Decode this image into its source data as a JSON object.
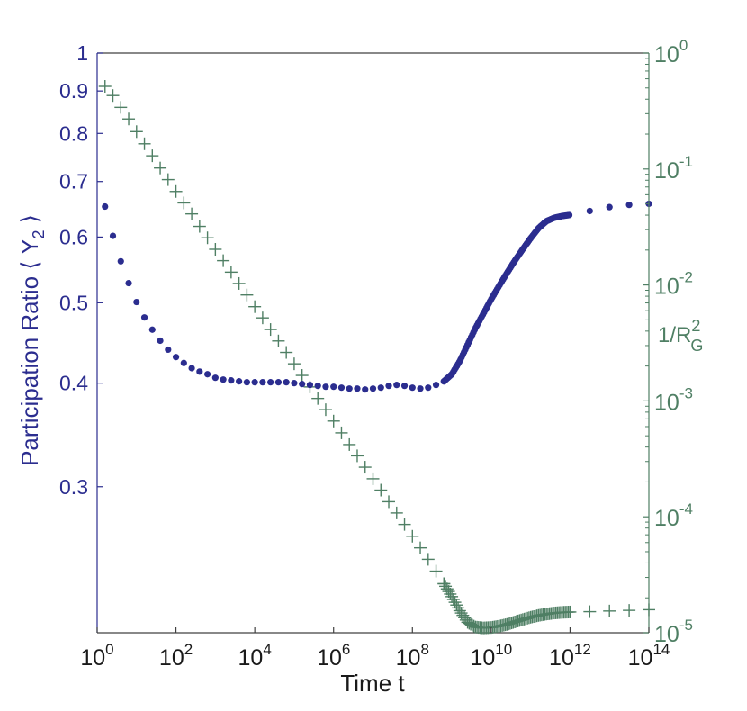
{
  "chart_data": {
    "type": "scatter",
    "title": "",
    "xlabel": "Time t",
    "ylabel_left": "Participation Ratio ⟨ Y₂ ⟩",
    "ylabel_left_main": "Participation Ratio ⟨ Y",
    "ylabel_left_sub": "2",
    "ylabel_left_close": " ⟩",
    "ylabel_right": "1/R_G^2",
    "ylabel_right_main": "1/R",
    "ylabel_right_sup": "2",
    "ylabel_right_sub": "G",
    "xscale": "log",
    "xlim": [
      1,
      100000000000000.0
    ],
    "x_ticks": [
      0,
      2,
      4,
      6,
      8,
      10,
      12,
      14
    ],
    "x_tick_labels": [
      "10^0",
      "10^2",
      "10^4",
      "10^6",
      "10^8",
      "10^10",
      "10^12",
      "10^14"
    ],
    "ylim_left": [
      0.2,
      1
    ],
    "yscale_left": "log",
    "y_ticks_left": [
      0.3,
      0.4,
      0.5,
      0.6,
      0.7,
      0.8,
      0.9,
      1
    ],
    "y_tick_labels_left": [
      "0.3",
      "0.4",
      "0.5",
      "0.6",
      "0.7",
      "0.8",
      "0.9",
      "1"
    ],
    "ylim_right": [
      1e-05,
      1
    ],
    "yscale_right": "log",
    "y_ticks_right": [
      -5,
      -4,
      -3,
      -2,
      -1,
      0
    ],
    "y_tick_labels_right": [
      "10^-5",
      "10^-4",
      "10^-3",
      "10^-2",
      "10^-1",
      "10^0"
    ],
    "grid": false,
    "legend": null,
    "colors": {
      "left_series": "#2b2d8f",
      "right_series": "#4f7f64",
      "axis": "#404040"
    },
    "series": [
      {
        "name": "Participation Ratio <Y2>",
        "axis": "left",
        "marker": "dot",
        "color": "#2b2d8f",
        "log10_t": [
          0.2,
          0.4,
          0.6,
          0.8,
          1.0,
          1.2,
          1.4,
          1.6,
          1.8,
          2.0,
          2.2,
          2.4,
          2.6,
          2.8,
          3.0,
          3.2,
          3.4,
          3.6,
          3.8,
          4.0,
          4.2,
          4.4,
          4.6,
          4.8,
          5.0,
          5.2,
          5.4,
          5.6,
          5.8,
          6.0,
          6.2,
          6.4,
          6.6,
          6.8,
          7.0,
          7.2,
          7.4,
          7.6,
          7.8,
          8.0,
          8.2,
          8.4,
          8.6,
          8.8,
          9.0,
          9.2,
          9.4,
          9.6,
          9.8,
          10.0,
          10.2,
          10.4,
          10.6,
          10.8,
          11.0,
          11.2,
          11.4,
          11.6,
          11.8,
          12.0,
          12.5,
          13.0,
          13.5,
          14.0
        ],
        "values": [
          0.653,
          0.602,
          0.561,
          0.528,
          0.501,
          0.48,
          0.464,
          0.45,
          0.439,
          0.43,
          0.423,
          0.417,
          0.413,
          0.41,
          0.406,
          0.404,
          0.403,
          0.402,
          0.401,
          0.401,
          0.401,
          0.401,
          0.401,
          0.401,
          0.4,
          0.399,
          0.398,
          0.397,
          0.396,
          0.396,
          0.395,
          0.394,
          0.394,
          0.393,
          0.394,
          0.395,
          0.397,
          0.398,
          0.397,
          0.395,
          0.394,
          0.395,
          0.398,
          0.402,
          0.41,
          0.425,
          0.445,
          0.466,
          0.485,
          0.505,
          0.524,
          0.543,
          0.562,
          0.58,
          0.598,
          0.615,
          0.627,
          0.633,
          0.636,
          0.638,
          0.645,
          0.652,
          0.656,
          0.658
        ]
      },
      {
        "name": "1/R_G^2",
        "axis": "right",
        "marker": "plus",
        "color": "#4f7f64",
        "log10_t": [
          0.2,
          0.4,
          0.6,
          0.8,
          1.0,
          1.2,
          1.4,
          1.6,
          1.8,
          2.0,
          2.2,
          2.4,
          2.6,
          2.8,
          3.0,
          3.2,
          3.4,
          3.6,
          3.8,
          4.0,
          4.2,
          4.4,
          4.6,
          4.8,
          5.0,
          5.2,
          5.4,
          5.6,
          5.8,
          6.0,
          6.2,
          6.4,
          6.6,
          6.8,
          7.0,
          7.2,
          7.4,
          7.6,
          7.8,
          8.0,
          8.2,
          8.4,
          8.6,
          8.8,
          9.0,
          9.2,
          9.4,
          9.6,
          9.8,
          10.0,
          10.2,
          10.4,
          10.6,
          10.8,
          11.0,
          11.2,
          11.4,
          11.6,
          11.8,
          12.0,
          12.5,
          13.0,
          13.5,
          14.0
        ],
        "values": [
          0.516,
          0.43,
          0.34,
          0.27,
          0.21,
          0.165,
          0.13,
          0.102,
          0.081,
          0.064,
          0.051,
          0.041,
          0.032,
          0.0255,
          0.0203,
          0.0162,
          0.0129,
          0.0103,
          0.0082,
          0.0065,
          0.0052,
          0.00413,
          0.00329,
          0.00262,
          0.00209,
          0.00166,
          0.00132,
          0.00105,
          0.00084,
          0.00067,
          0.00053,
          0.00042,
          0.000336,
          0.000268,
          0.000213,
          0.00017,
          0.000135,
          0.000108,
          8.6e-05,
          6.8e-05,
          5.4e-05,
          4.3e-05,
          3.4e-05,
          2.65e-05,
          2.05e-05,
          1.55e-05,
          1.23e-05,
          1.12e-05,
          1.1e-05,
          1.11e-05,
          1.14e-05,
          1.18e-05,
          1.24e-05,
          1.3e-05,
          1.36e-05,
          1.41e-05,
          1.45e-05,
          1.48e-05,
          1.5e-05,
          1.51e-05,
          1.52e-05,
          1.54e-05,
          1.56e-05,
          1.58e-05
        ]
      }
    ]
  }
}
